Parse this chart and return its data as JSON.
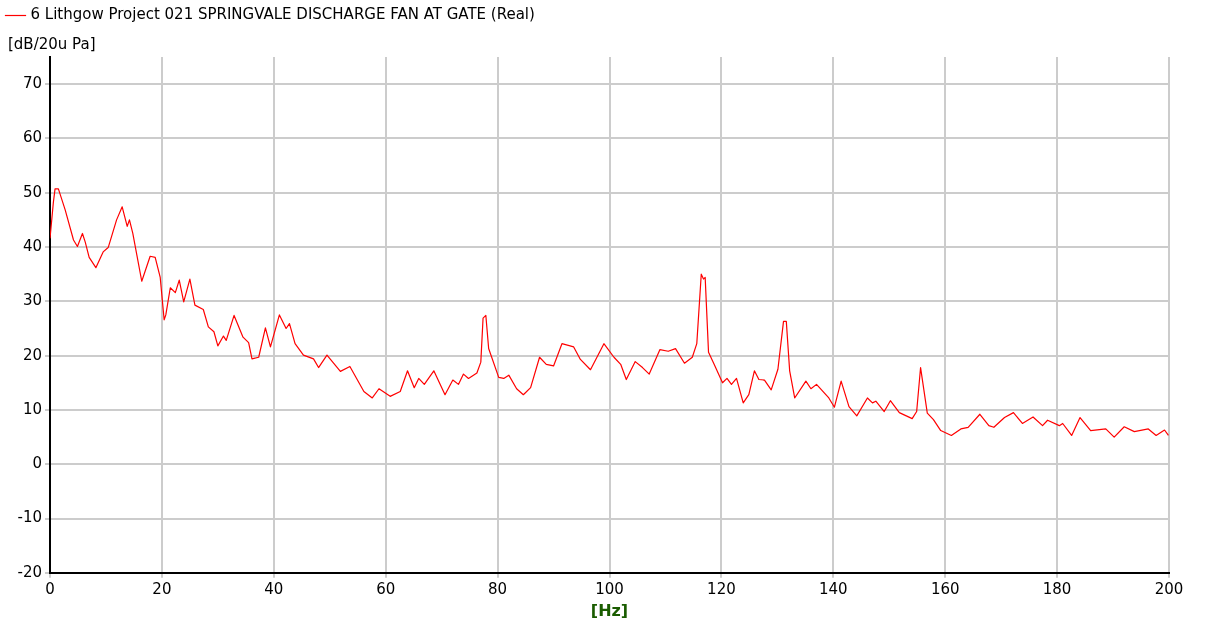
{
  "chart_data": {
    "type": "line",
    "legend": "top",
    "grid": true,
    "marker": "none",
    "line_style": "solid",
    "ylabel": "[dB/20u Pa]",
    "xlabel": "[Hz]",
    "xlim": [
      0,
      200
    ],
    "xticks": [
      0,
      20,
      40,
      60,
      80,
      100,
      120,
      140,
      160,
      180,
      200
    ],
    "ylim": [
      -20,
      75
    ],
    "yticks": [
      -20,
      -10,
      0,
      10,
      20,
      30,
      40,
      50,
      60,
      70
    ],
    "series": [
      {
        "name": "6 Lithgow Project 021 SPRINGVALE DISCHARGE FAN AT GATE (Real)",
        "color": "#ff0000",
        "x": [
          0,
          0.6,
          0.9,
          1.5,
          2.7,
          4.2,
          4.9,
          5.8,
          6.3,
          7.0,
          8.2,
          9.5,
          10.4,
          11.9,
          12.9,
          13.8,
          14.2,
          14.8,
          16.4,
          17.9,
          18.8,
          19.7,
          20.4,
          20.7,
          21.5,
          22.4,
          23.1,
          23.9,
          25.0,
          25.9,
          27.4,
          28.3,
          29.3,
          30.0,
          31.0,
          31.5,
          32.9,
          34.5,
          35.5,
          36.1,
          37.3,
          38.5,
          39.4,
          41.0,
          42.2,
          42.8,
          43.8,
          45.3,
          47.1,
          48.0,
          49.5,
          51.9,
          53.6,
          56.1,
          57.6,
          58.8,
          60.8,
          62.6,
          63.9,
          65.1,
          65.9,
          66.9,
          68.6,
          70.6,
          72.0,
          73.0,
          73.9,
          74.8,
          76.3,
          77.0,
          77.4,
          77.9,
          78.4,
          80.2,
          81.1,
          82.0,
          83.4,
          84.6,
          85.9,
          87.5,
          88.7,
          90.0,
          91.5,
          93.6,
          94.8,
          96.6,
          99.0,
          100.8,
          102.0,
          103.0,
          104.6,
          105.9,
          107.1,
          109.0,
          110.5,
          111.8,
          113.4,
          114.8,
          115.6,
          116.4,
          116.8,
          117.1,
          117.7,
          118.7,
          120.2,
          121.0,
          121.8,
          122.7,
          123.9,
          124.9,
          125.9,
          126.7,
          127.7,
          128.9,
          130.1,
          131.1,
          131.6,
          132.2,
          133.1,
          135.1,
          136.0,
          137.0,
          139.2,
          140.2,
          141.4,
          142.8,
          144.2,
          146.1,
          147.0,
          147.6,
          149.1,
          150.2,
          151.8,
          154.1,
          154.9,
          155.6,
          156.8,
          157.9,
          159.2,
          161.1,
          162.8,
          164.1,
          166.2,
          167.8,
          168.7,
          170.6,
          172.2,
          173.8,
          175.7,
          177.4,
          178.3,
          180.4,
          181.0,
          182.6,
          184.1,
          186.0,
          188.7,
          190.2,
          192.0,
          193.8,
          196.3,
          197.7,
          199.2,
          199.9
        ],
        "values": [
          41.6,
          48.2,
          50.7,
          50.7,
          46.9,
          41.3,
          40.1,
          42.5,
          40.9,
          38.1,
          36.2,
          39.1,
          39.9,
          45.0,
          47.4,
          43.8,
          45.0,
          42.5,
          33.7,
          38.3,
          38.1,
          34.4,
          26.6,
          27.5,
          32.5,
          31.6,
          33.9,
          29.9,
          34.1,
          29.3,
          28.5,
          25.3,
          24.4,
          21.8,
          23.6,
          22.8,
          27.4,
          23.4,
          22.4,
          19.4,
          19.7,
          25.1,
          21.6,
          27.5,
          25.0,
          25.9,
          22.2,
          20.1,
          19.4,
          17.8,
          20.1,
          17.1,
          18.0,
          13.4,
          12.2,
          13.9,
          12.5,
          13.4,
          17.2,
          14.1,
          15.8,
          14.7,
          17.2,
          12.8,
          15.5,
          14.7,
          16.6,
          15.8,
          16.8,
          18.8,
          26.9,
          27.4,
          21.3,
          16.0,
          15.8,
          16.4,
          13.9,
          12.8,
          14.1,
          19.7,
          18.4,
          18.1,
          22.2,
          21.6,
          19.3,
          17.4,
          22.2,
          19.7,
          18.4,
          15.6,
          18.9,
          17.8,
          16.6,
          21.1,
          20.8,
          21.3,
          18.6,
          19.7,
          22.2,
          35.0,
          34.1,
          34.4,
          20.6,
          18.4,
          15.0,
          15.8,
          14.7,
          15.8,
          11.3,
          12.8,
          17.2,
          15.6,
          15.5,
          13.7,
          17.5,
          26.3,
          26.3,
          17.2,
          12.2,
          15.3,
          13.9,
          14.7,
          12.2,
          10.5,
          15.3,
          10.6,
          8.9,
          12.2,
          11.3,
          11.6,
          9.7,
          11.7,
          9.5,
          8.4,
          9.7,
          17.8,
          9.4,
          8.2,
          6.2,
          5.3,
          6.5,
          6.8,
          9.2,
          7.1,
          6.8,
          8.6,
          9.5,
          7.5,
          8.7,
          7.1,
          8.1,
          7.1,
          7.5,
          5.3,
          8.6,
          6.2,
          6.5,
          5.0,
          6.9,
          6.0,
          6.5,
          5.3,
          6.3,
          5.3
        ]
      }
    ]
  }
}
